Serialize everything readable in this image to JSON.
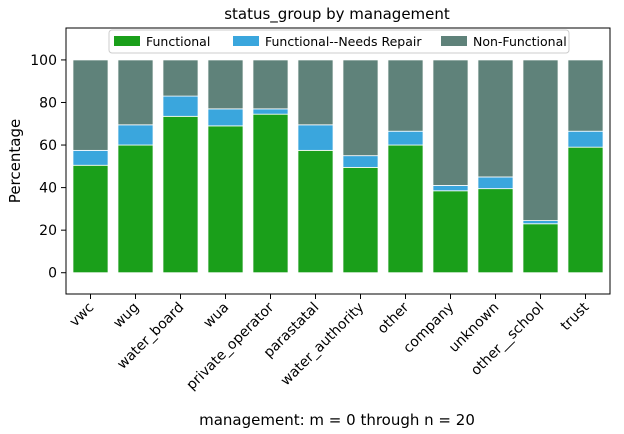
{
  "chart_data": {
    "type": "bar",
    "stacked": true,
    "title": "status_group by management",
    "xlabel": "management: m = 0 through n = 20",
    "ylabel": "Percentage",
    "ylim": [
      -10,
      115
    ],
    "yticks": [
      0,
      20,
      40,
      60,
      80,
      100
    ],
    "categories": [
      "vwc",
      "wug",
      "water_board",
      "wua",
      "private_operator",
      "parastatal",
      "water_authority",
      "other",
      "company",
      "unknown",
      "other - school",
      "trust"
    ],
    "category_labels": [
      "vwc",
      "wug",
      "water_board",
      "wua",
      "private_operator",
      "parastatal",
      "water_authority",
      "other",
      "company",
      "unknown",
      "other__school",
      "trust"
    ],
    "series": [
      {
        "name": "Functional",
        "color": "#1a9f1a",
        "values": [
          50.5,
          60,
          73.5,
          69,
          74.5,
          57.5,
          49.5,
          60,
          38.5,
          39.5,
          23,
          59
        ]
      },
      {
        "name": "Functional--Needs Repair",
        "color": "#3aa6dd",
        "values": [
          7,
          9.5,
          9.5,
          8,
          2.5,
          12,
          5.5,
          6.5,
          2.5,
          5.5,
          1.5,
          7.5
        ]
      },
      {
        "name": "Non-Functional",
        "color": "#5f827a",
        "values": [
          42.5,
          30.5,
          17,
          23,
          23,
          30.5,
          45,
          33.5,
          59,
          55,
          75.5,
          33.5
        ]
      }
    ],
    "legend_position": "top-center",
    "grid": false
  }
}
